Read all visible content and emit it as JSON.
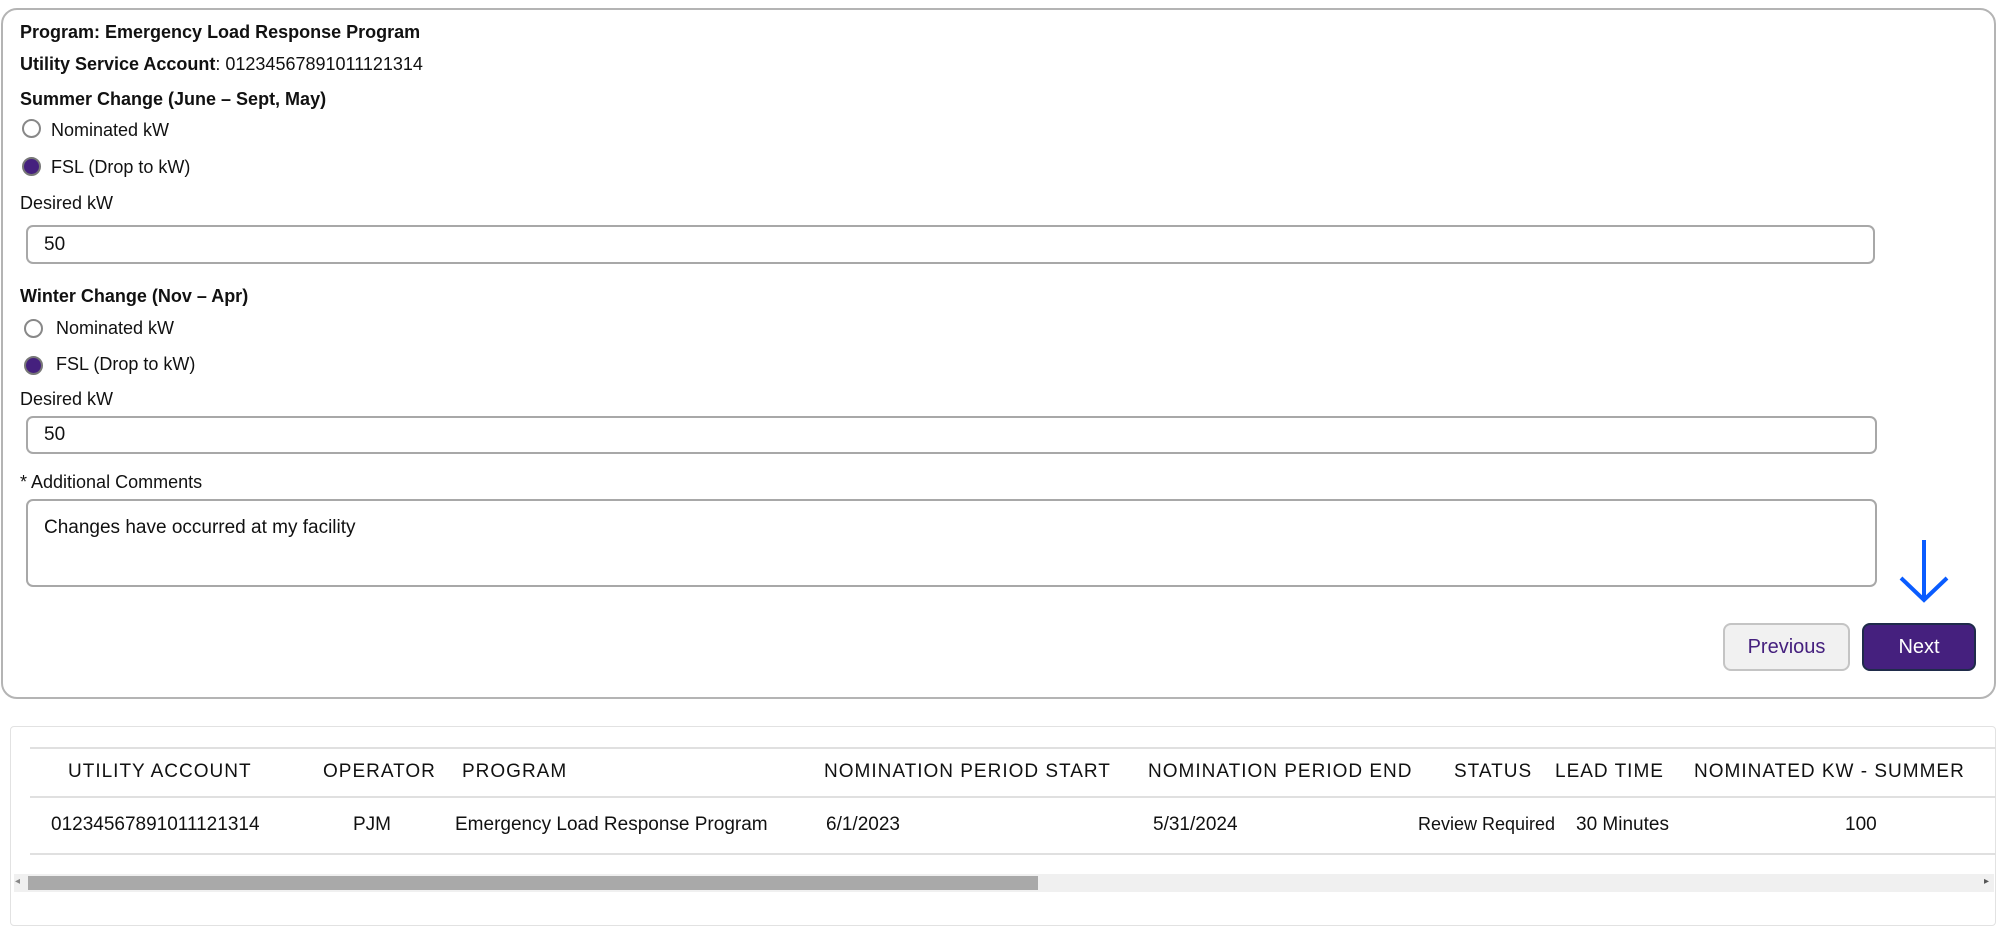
{
  "form": {
    "program_label": "Program: Emergency Load Response Program",
    "account_label": "Utility Service Account",
    "account_value": ": 01234567891011121314",
    "summer": {
      "heading": "Summer Change (June – Sept, May)",
      "options": [
        {
          "label": "Nominated kW",
          "selected": false
        },
        {
          "label": "FSL (Drop to kW)",
          "selected": true
        }
      ],
      "desired_label": "Desired kW",
      "desired_value": "50"
    },
    "winter": {
      "heading": "Winter Change (Nov – Apr)",
      "options": [
        {
          "label": "Nominated kW",
          "selected": false
        },
        {
          "label": "FSL (Drop to kW)",
          "selected": true
        }
      ],
      "desired_label": "Desired kW",
      "desired_value": "50"
    },
    "comments_label": "* Additional Comments",
    "comments_value": "Changes have occurred at my facility",
    "previous_label": "Previous",
    "next_label": "Next",
    "accent_color": "#45207e",
    "annotation_arrow_color": "#0a5cff"
  },
  "table": {
    "headers": [
      "UTILITY ACCOUNT",
      "OPERATOR",
      "PROGRAM",
      "NOMINATION PERIOD START",
      "NOMINATION PERIOD END",
      "STATUS",
      "LEAD TIME",
      "NOMINATED KW - SUMMER"
    ],
    "rows": [
      [
        "01234567891011121314",
        "PJM",
        "Emergency Load Response Program",
        "6/1/2023",
        "5/31/2024",
        "Review Required",
        "30 Minutes",
        "100"
      ]
    ]
  }
}
